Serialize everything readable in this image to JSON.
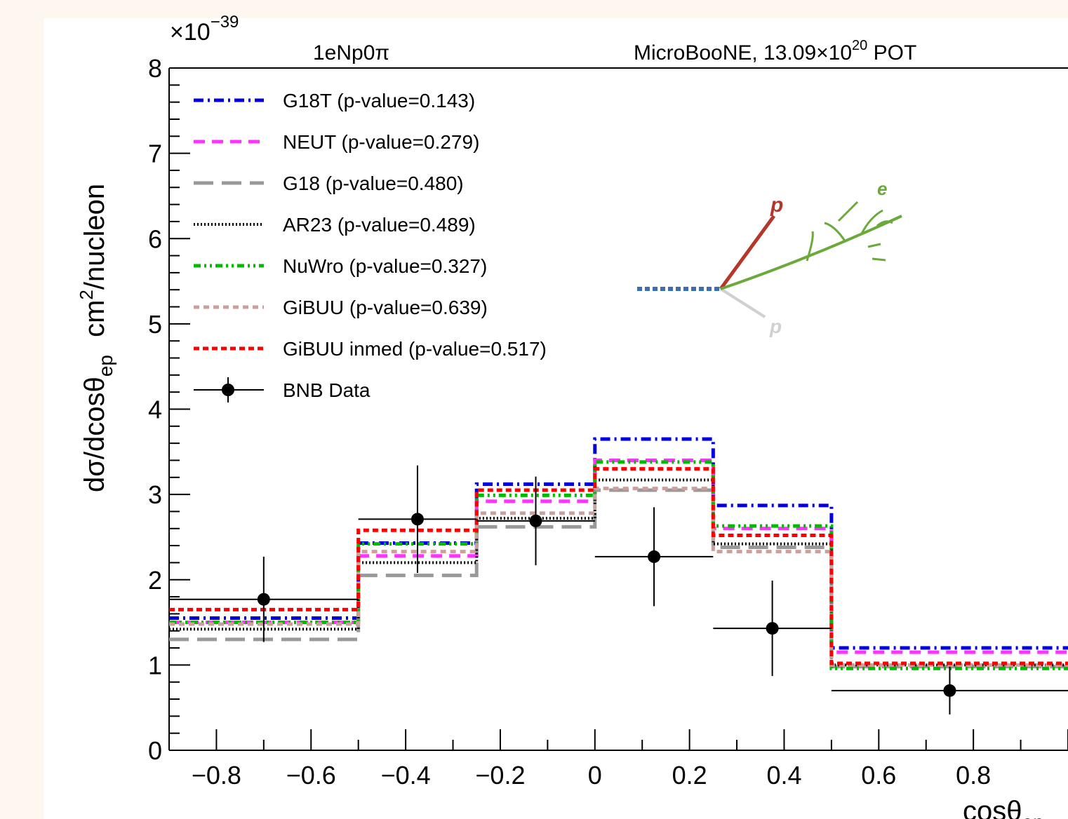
{
  "chart_data": {
    "type": "line",
    "subtype": "step-histogram-with-errorbars",
    "title_left": "1eNp0π",
    "title_right_main": "MicroBooNE, 13.09×10",
    "title_right_exp": "20",
    "title_right_tail": " POT",
    "exponent_label": "×10",
    "exponent_value": "−39",
    "ylabel_main": "dσ/dcosθ",
    "ylabel_sub": "ep",
    "ylabel_unit_pre": "cm",
    "ylabel_unit_sup": "2",
    "ylabel_unit_post": "/nucleon",
    "xlabel_main": "cosθ",
    "xlabel_sub": "ep",
    "xlim": [
      -0.9,
      1.0
    ],
    "ylim": [
      0,
      8
    ],
    "x_ticks": [
      "−0.8",
      "−0.6",
      "−0.4",
      "−0.2",
      "0",
      "0.2",
      "0.4",
      "0.6",
      "0.8"
    ],
    "x_tick_values": [
      -0.8,
      -0.6,
      -0.4,
      -0.2,
      0,
      0.2,
      0.4,
      0.6,
      0.8
    ],
    "y_ticks": [
      "0",
      "1",
      "2",
      "3",
      "4",
      "5",
      "6",
      "7",
      "8"
    ],
    "y_tick_values": [
      0,
      1,
      2,
      3,
      4,
      5,
      6,
      7,
      8
    ],
    "bin_edges": [
      -1.0,
      -0.5,
      -0.25,
      0.0,
      0.25,
      0.5,
      1.0
    ],
    "series": [
      {
        "name": "G18T (p-value=0.143)",
        "color": "#0000e0",
        "dash": "14 6 3 6",
        "width": 5,
        "values": [
          1.55,
          2.43,
          3.12,
          3.65,
          2.87,
          1.2
        ]
      },
      {
        "name": "NEUT (p-value=0.279)",
        "color": "#ff33ff",
        "dash": "16 10",
        "width": 5,
        "values": [
          1.5,
          2.28,
          2.92,
          3.4,
          2.6,
          1.15
        ]
      },
      {
        "name": "G18 (p-value=0.480)",
        "color": "#999999",
        "dash": "28 12",
        "width": 5,
        "values": [
          1.3,
          2.05,
          2.62,
          3.05,
          2.38,
          0.98
        ]
      },
      {
        "name": "AR23 (p-value=0.489)",
        "color": "#000000",
        "dash": "2 3",
        "width": 4,
        "values": [
          1.42,
          2.2,
          2.72,
          3.17,
          2.42,
          1.0
        ]
      },
      {
        "name": "NuWro (p-value=0.327)",
        "color": "#00bb00",
        "dash": "10 5 3 5 3 5",
        "width": 5,
        "values": [
          1.5,
          2.42,
          2.99,
          3.38,
          2.63,
          0.96
        ]
      },
      {
        "name": "GiBUU (p-value=0.639)",
        "color": "#c9a09c",
        "dash": "8 6",
        "width": 5,
        "values": [
          1.48,
          2.33,
          2.78,
          3.07,
          2.33,
          1.0
        ]
      },
      {
        "name": "GiBUU inmed (p-value=0.517)",
        "color": "#ff0000",
        "dash": "8 5",
        "width": 5,
        "values": [
          1.65,
          2.58,
          3.05,
          3.3,
          2.52,
          1.02
        ]
      }
    ],
    "data_points": {
      "name": "BNB Data",
      "points": [
        {
          "x": -0.7,
          "y": 1.77,
          "xerr_lo": -0.9,
          "xerr_hi": -0.5,
          "err": 0.5
        },
        {
          "x": -0.375,
          "y": 2.71,
          "xerr_lo": -0.5,
          "xerr_hi": -0.25,
          "err": 0.63
        },
        {
          "x": -0.125,
          "y": 2.69,
          "xerr_lo": -0.25,
          "xerr_hi": 0.0,
          "err": 0.52
        },
        {
          "x": 0.125,
          "y": 2.27,
          "xerr_lo": 0.0,
          "xerr_hi": 0.25,
          "err": 0.58
        },
        {
          "x": 0.375,
          "y": 1.43,
          "xerr_lo": 0.25,
          "xerr_hi": 0.5,
          "err": 0.56
        },
        {
          "x": 0.75,
          "y": 0.7,
          "xerr_lo": 0.5,
          "xerr_hi": 1.0,
          "err": 0.28
        }
      ]
    },
    "inset_labels": {
      "p_main": "p",
      "e": "e",
      "p_faint": "p"
    },
    "grid": false,
    "legend_position": "top-left"
  }
}
